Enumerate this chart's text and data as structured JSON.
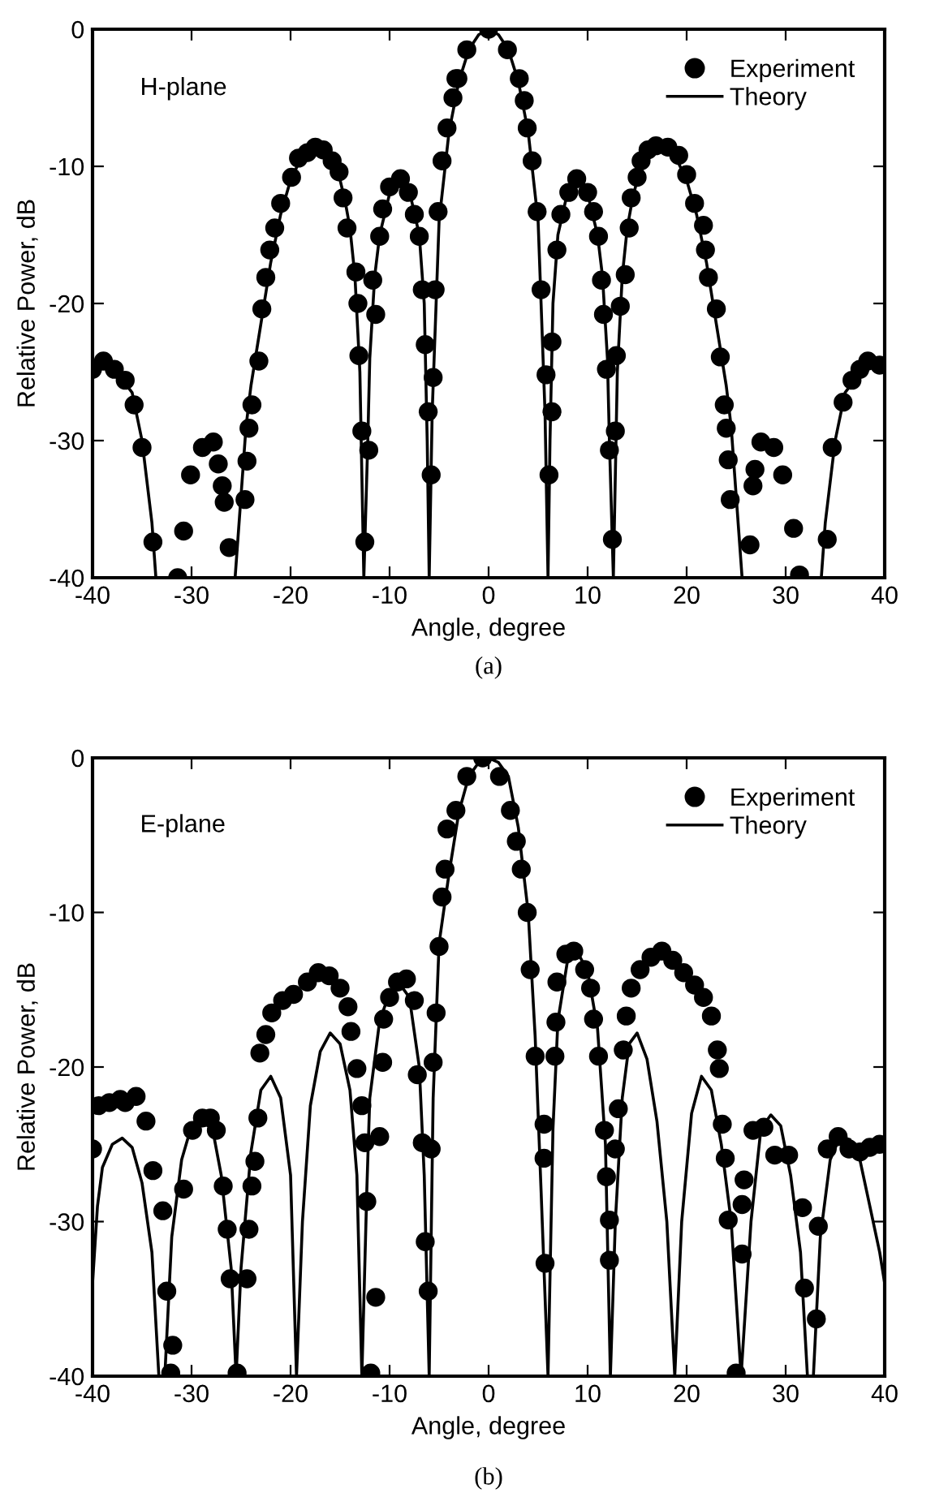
{
  "chart_data": [
    {
      "type": "scatter",
      "xlabel": "Angle, degree",
      "ylabel": "Relative Power, dB",
      "annotations": [
        "H-plane",
        "(a)"
      ],
      "xlim": [
        -40,
        40
      ],
      "ylim": [
        -40,
        0
      ],
      "xticks": [
        -40,
        -30,
        -20,
        -10,
        0,
        10,
        20,
        30,
        40
      ],
      "yticks": [
        -40,
        -30,
        -20,
        -10,
        0
      ],
      "grid": false,
      "legend": "top right",
      "series": [
        {
          "name": "Experiment",
          "color": "#000000",
          "marker": "circle",
          "x": [
            -40,
            -38.9,
            -37.8,
            -36.7,
            -35.8,
            -35,
            -33.9,
            -31.4,
            -30.8,
            -30.1,
            -28.9,
            -27.8,
            -27.3,
            -26.9,
            -26.7,
            -26.2,
            -24.6,
            -24.4,
            -24.2,
            -23.9,
            -23.2,
            -22.9,
            -22.5,
            -22.1,
            -21.6,
            -21,
            -19.9,
            -19.2,
            -18.3,
            -17.5,
            -16.7,
            -15.8,
            -15.1,
            -14.7,
            -14.3,
            -13.4,
            -13.2,
            -13.1,
            -12.8,
            -12.5,
            -12.1,
            -11.7,
            -11.4,
            -11,
            -10.7,
            -10,
            -8.9,
            -8.1,
            -7.5,
            -7,
            -6.7,
            -6.4,
            -6.1,
            -5.8,
            -5.6,
            -5.4,
            -5.1,
            -4.7,
            -4.2,
            -3.6,
            -3.3,
            -3.1,
            -2.2,
            0,
            1.9,
            3.1,
            3.6,
            3.9,
            4.4,
            4.9,
            5.3,
            5.8,
            6.1,
            6.4,
            6.4,
            6.9,
            7.3,
            8.1,
            8.9,
            10,
            10.6,
            11.1,
            11.4,
            11.6,
            11.9,
            12.2,
            12.5,
            12.8,
            12.9,
            13.3,
            13.8,
            14.2,
            14.4,
            15,
            15.4,
            16.1,
            16.9,
            18.1,
            19.2,
            20,
            20.8,
            21.7,
            21.9,
            22.2,
            23,
            23.4,
            23.8,
            24,
            24.2,
            24.4,
            26.4,
            26.7,
            26.9,
            27.5,
            28.8,
            29.7,
            30.8,
            31.4,
            34.2,
            34.7,
            35.8,
            36.7,
            37.5,
            38.3,
            39.5
          ],
          "values": [
            -24.8,
            -24.2,
            -24.8,
            -25.6,
            -27.4,
            -30.5,
            -37.4,
            -40,
            -36.6,
            -32.5,
            -30.5,
            -30.1,
            -31.7,
            -33.3,
            -34.5,
            -37.8,
            -34.3,
            -31.5,
            -29.1,
            -27.4,
            -24.2,
            -20.4,
            -18.1,
            -16.1,
            -14.5,
            -12.7,
            -10.8,
            -9.4,
            -9,
            -8.6,
            -8.8,
            -9.6,
            -10.4,
            -12.3,
            -14.5,
            -17.7,
            -20,
            -23.8,
            -29.3,
            -37.4,
            -30.7,
            -18.3,
            -20.8,
            -15.1,
            -13.1,
            -11.5,
            -10.9,
            -11.9,
            -13.5,
            -15.1,
            -19,
            -23,
            -27.9,
            -32.5,
            -25.4,
            -19,
            -13.3,
            -9.6,
            -7.2,
            -5,
            -3.6,
            -3.6,
            -1.5,
            0,
            -1.5,
            -3.6,
            -5.2,
            -7.2,
            -9.6,
            -13.3,
            -19,
            -25.2,
            -32.5,
            -22.8,
            -27.9,
            -16.1,
            -13.5,
            -11.9,
            -10.9,
            -11.9,
            -13.3,
            -15.1,
            -18.3,
            -20.8,
            -24.8,
            -30.7,
            -37.2,
            -29.3,
            -23.8,
            -20.2,
            -17.9,
            -14.5,
            -12.3,
            -10.8,
            -9.6,
            -8.8,
            -8.5,
            -8.6,
            -9.2,
            -10.6,
            -12.7,
            -14.3,
            -16.1,
            -18.1,
            -20.4,
            -23.9,
            -27.4,
            -29.1,
            -31.4,
            -34.3,
            -37.6,
            -33.3,
            -32.1,
            -30.1,
            -30.5,
            -32.5,
            -36.4,
            -39.8,
            -37.2,
            -30.5,
            -27.2,
            -25.6,
            -24.8,
            -24.2,
            -24.5
          ]
        },
        {
          "name": "Theory",
          "type": "line",
          "color": "#000000",
          "x": [
            -40,
            -38,
            -36,
            -35,
            -34,
            -33.6,
            -25.6,
            -25,
            -24.5,
            -24,
            -23,
            -22,
            -21,
            -20,
            -19,
            -18,
            -17,
            -16,
            -15,
            -14.5,
            -14,
            -13.5,
            -13,
            -12.6,
            -12.2,
            -12,
            -11.5,
            -11,
            -10,
            -9,
            -8,
            -7,
            -6.5,
            -6.2,
            -6,
            -5.7,
            -5.3,
            -5,
            -4,
            -3,
            -2,
            -1,
            0,
            1,
            2,
            3,
            4,
            5,
            5.3,
            5.7,
            6,
            6.2,
            6.5,
            7,
            8,
            9,
            10,
            11,
            11.5,
            12,
            12.2,
            12.6,
            13,
            13.5,
            14,
            14.5,
            15,
            16,
            17,
            18,
            19,
            20,
            21,
            22,
            23,
            24,
            24.5,
            25,
            25.6,
            33.6,
            34,
            35,
            36,
            38,
            40
          ],
          "values": [
            -24.8,
            -24.6,
            -26.5,
            -30,
            -36,
            -40,
            -40,
            -34,
            -29,
            -26,
            -21.5,
            -17,
            -13.5,
            -11,
            -9.5,
            -8.7,
            -8.7,
            -9.5,
            -11,
            -12.5,
            -14.5,
            -18,
            -25,
            -40,
            -30,
            -24,
            -18,
            -15,
            -12,
            -11,
            -11.8,
            -15,
            -20,
            -30,
            -40,
            -28,
            -20,
            -14,
            -7.5,
            -3.8,
            -1.5,
            -0.4,
            0,
            -0.4,
            -1.5,
            -3.8,
            -7.5,
            -14,
            -20,
            -28,
            -40,
            -30,
            -20,
            -15,
            -11.8,
            -11,
            -12,
            -15,
            -18,
            -24,
            -30,
            -40,
            -25,
            -18,
            -14.5,
            -12.5,
            -11,
            -9.5,
            -8.7,
            -8.7,
            -9.5,
            -11,
            -13.5,
            -17,
            -21.5,
            -26,
            -29,
            -34,
            -40,
            -40,
            -36,
            -30,
            -26.5,
            -24.6,
            -24.8
          ]
        }
      ]
    },
    {
      "type": "scatter",
      "xlabel": "Angle, degree",
      "ylabel": "Relative Power, dB",
      "annotations": [
        "E-plane",
        "(b)"
      ],
      "xlim": [
        -40,
        40
      ],
      "ylim": [
        -40,
        0
      ],
      "xticks": [
        -40,
        -30,
        -20,
        -10,
        0,
        10,
        20,
        30,
        40
      ],
      "yticks": [
        -40,
        -30,
        -20,
        -10,
        0
      ],
      "grid": false,
      "legend": "top right",
      "series": [
        {
          "name": "Experiment",
          "color": "#000000",
          "marker": "circle",
          "x": [
            -40,
            -39.4,
            -38.3,
            -37.2,
            -36.7,
            -35.6,
            -34.6,
            -33.9,
            -32.9,
            -32.5,
            -32.1,
            -31.9,
            -30.8,
            -29.9,
            -28.9,
            -28.1,
            -27.5,
            -26.8,
            -26.4,
            -26.1,
            -25.4,
            -24.4,
            -24.2,
            -23.9,
            -23.6,
            -23.3,
            -23.1,
            -22.5,
            -21.9,
            -20.8,
            -19.7,
            -18.3,
            -17.2,
            -16.1,
            -15,
            -14.2,
            -13.9,
            -13.3,
            -12.8,
            -12.5,
            -12.3,
            -11.9,
            -11.4,
            -11,
            -10.7,
            -10.6,
            -10,
            -9.2,
            -8.3,
            -7.5,
            -7.2,
            -6.7,
            -6.4,
            -6.1,
            -5.8,
            -5.6,
            -5.3,
            -5,
            -4.7,
            -4.4,
            -4.2,
            -3.3,
            -2.2,
            -0.6,
            1.1,
            2.2,
            2.8,
            3.3,
            3.9,
            4.2,
            4.7,
            5.6,
            5.6,
            5.7,
            6.7,
            6.8,
            6.9,
            7.8,
            8.6,
            9.7,
            10.3,
            10.6,
            11.1,
            11.7,
            11.9,
            12.2,
            12.2,
            12.8,
            13.1,
            13.6,
            13.9,
            14.4,
            15.3,
            16.4,
            17.5,
            18.6,
            19.7,
            20.8,
            21.7,
            22.5,
            23.1,
            23.3,
            23.6,
            23.9,
            24.2,
            25,
            25.6,
            25.6,
            25.8,
            26.7,
            27.8,
            28.9,
            30.3,
            31.7,
            31.9,
            33.1,
            33.3,
            34.2,
            35.3,
            36.4,
            37.5,
            38.5,
            39.5
          ],
          "values": [
            -25.3,
            -22.5,
            -22.3,
            -22.1,
            -22.3,
            -21.9,
            -23.5,
            -26.7,
            -29.3,
            -34.5,
            -39.8,
            -38,
            -27.9,
            -24.1,
            -23.3,
            -23.3,
            -24.1,
            -27.7,
            -30.5,
            -33.7,
            -39.8,
            -33.7,
            -30.5,
            -27.7,
            -26.1,
            -23.3,
            -19.1,
            -17.9,
            -16.5,
            -15.7,
            -15.3,
            -14.5,
            -13.9,
            -14.1,
            -14.9,
            -16.1,
            -17.7,
            -20.1,
            -22.5,
            -24.9,
            -28.7,
            -39.8,
            -34.9,
            -24.5,
            -19.7,
            -16.9,
            -15.5,
            -14.5,
            -14.3,
            -15.7,
            -20.5,
            -24.9,
            -31.3,
            -34.5,
            -25.3,
            -19.7,
            -16.5,
            -12.2,
            -9,
            -7.2,
            -4.6,
            -3.4,
            -1.2,
            0,
            -1.2,
            -3.4,
            -5.4,
            -7.2,
            -10,
            -13.7,
            -19.3,
            -23.7,
            -25.9,
            -32.7,
            -19.3,
            -17.1,
            -14.5,
            -12.7,
            -12.5,
            -13.7,
            -14.9,
            -16.9,
            -19.3,
            -24.1,
            -27.1,
            -29.9,
            -32.5,
            -25.3,
            -22.7,
            -18.9,
            -16.7,
            -14.9,
            -13.7,
            -12.9,
            -12.5,
            -13.1,
            -13.9,
            -14.7,
            -15.5,
            -16.7,
            -18.9,
            -20.1,
            -23.7,
            -25.9,
            -29.9,
            -39.8,
            -28.9,
            -32.1,
            -27.3,
            -24.1,
            -23.9,
            -25.7,
            -25.7,
            -29.1,
            -34.3,
            -36.3,
            -30.3,
            -25.3,
            -24.5,
            -25.3,
            -25.5,
            -25.2,
            -25
          ]
        },
        {
          "name": "Theory",
          "type": "line",
          "color": "#000000",
          "x": [
            -40,
            -39.5,
            -39,
            -38,
            -37,
            -36,
            -35,
            -34,
            -33.3,
            -32.7,
            -32,
            -31,
            -30,
            -29,
            -28,
            -27,
            -26,
            -25.5,
            -25,
            -24,
            -23,
            -22,
            -21,
            -20,
            -19.4,
            -18.8,
            -18,
            -17,
            -16,
            -15,
            -14,
            -13.3,
            -12.8,
            -12.3,
            -12,
            -11,
            -10,
            -9,
            -8,
            -7,
            -6.5,
            -6,
            -5.6,
            -5,
            -4,
            -3,
            -2,
            -1,
            0,
            1,
            2,
            3,
            4,
            4.7,
            5.3,
            6,
            6.5,
            7,
            8,
            9,
            10,
            11,
            11.8,
            12.3,
            12.8,
            13.5,
            14.2,
            15,
            16,
            17,
            18,
            18.8,
            19.5,
            20.5,
            21.5,
            22.5,
            23.5,
            24.5,
            25.5,
            26.5,
            27.5,
            28.5,
            29.5,
            30.5,
            31.5,
            32.2,
            32.8,
            33.5,
            34.5,
            35.5,
            36.5,
            37.5,
            38.5,
            39.5,
            40
          ],
          "values": [
            -34,
            -29,
            -26.5,
            -25,
            -24.6,
            -25.2,
            -27.5,
            -32,
            -40,
            -40,
            -31,
            -26,
            -23.8,
            -23,
            -23.6,
            -27,
            -33,
            -40,
            -33,
            -25.5,
            -21.5,
            -20.6,
            -22,
            -27,
            -40,
            -30,
            -22.5,
            -19,
            -17.8,
            -18.5,
            -21.5,
            -27,
            -40,
            -28,
            -22,
            -17,
            -15.2,
            -14.6,
            -15.5,
            -20,
            -27,
            -40,
            -22,
            -12,
            -7.5,
            -3.5,
            -1.2,
            -0.3,
            0,
            -0.3,
            -1.2,
            -4.5,
            -10,
            -18,
            -28,
            -40,
            -24,
            -17,
            -13,
            -12.6,
            -13.8,
            -17.5,
            -25,
            -40,
            -30,
            -22,
            -18.5,
            -17.8,
            -19.5,
            -23.5,
            -30,
            -40,
            -30,
            -23,
            -20.6,
            -21.5,
            -25,
            -30,
            -40,
            -30,
            -24,
            -23.1,
            -23.8,
            -27,
            -32,
            -40,
            -40,
            -31,
            -26,
            -24.5,
            -24.7,
            -26,
            -29,
            -32,
            -34
          ]
        }
      ]
    }
  ]
}
